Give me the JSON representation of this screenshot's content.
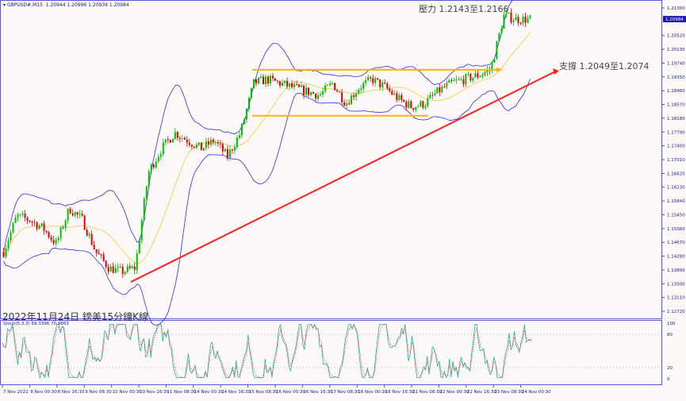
{
  "header": {
    "symbol": "GBPUSD#,M15",
    "ohlc": "1.20944 1.20996 1.20939 1.20984"
  },
  "title": "2022年11月24日 鎊美15分鐘K線",
  "annotations": {
    "resistance": "壓力 1.2143至1.2166",
    "support": "支撐 1.2049至1.2074"
  },
  "colors": {
    "bull": "#00c000",
    "bear": "#e00000",
    "bands": "#2a2aff",
    "level_line": "#ffb400",
    "trend_line": "#ff2020",
    "axis": "#5a5ad8",
    "stoch_main": "#20b0a0",
    "stoch_signal": "#ff3030"
  },
  "chart_data": [
    {
      "type": "candlestick",
      "symbol": "GBPUSD#",
      "timeframe": "M15",
      "ylim": [
        1.1272,
        1.213
      ],
      "y_ticks": [
        "1.21300",
        "1.20520",
        "1.20130",
        "1.19740",
        "1.19350",
        "1.18960",
        "1.18570",
        "1.18180",
        "1.17790",
        "1.17400",
        "1.17010",
        "1.16620",
        "1.16230",
        "1.15840",
        "1.15450",
        "1.15060",
        "1.14670",
        "1.14280",
        "1.13890",
        "1.13500",
        "1.13110",
        "1.12720"
      ],
      "current_price": "1.20984",
      "x_ticks": [
        "7 Nov 2022",
        "8 Nov 00:30",
        "8 Nov 16:30",
        "9 Nov 08:30",
        "10 Nov 00:30",
        "10 Nov 16:30",
        "11 Nov 08:30",
        "14 Nov 00:30",
        "14 Nov 16:30",
        "15 Nov 08:30",
        "16 Nov 00:30",
        "16 Nov 16:30",
        "17 Nov 08:30",
        "18 Nov 00:30",
        "18 Nov 16:30",
        "21 Nov 08:30",
        "22 Nov 00:30",
        "22 Nov 16:30",
        "23 Nov 08:30",
        "24 Nov 00:30"
      ],
      "close_path": [
        1.144,
        1.1541,
        1.153,
        1.1507,
        1.1462,
        1.1563,
        1.153,
        1.144,
        1.1395,
        1.1384,
        1.1395,
        1.1665,
        1.1732,
        1.1777,
        1.1755,
        1.1732,
        1.1755,
        1.171,
        1.1777,
        1.1917,
        1.1928,
        1.1917,
        1.1905,
        1.1894,
        1.1883,
        1.1917,
        1.186,
        1.1905,
        1.1928,
        1.1905,
        1.1872,
        1.185,
        1.186,
        1.1894,
        1.1917,
        1.1928,
        1.1939,
        1.1955,
        1.2108,
        1.2098,
        1.2098
      ],
      "indicators": [
        "Bollinger Bands"
      ],
      "levels": {
        "upper_horizontal": 1.1955,
        "lower_horizontal": 1.1825,
        "trendline_start": 1.1355,
        "trendline_end": 1.195
      }
    },
    {
      "type": "line",
      "label": "Stoch(5,3,3) 69.3396 70.9863",
      "ylim": [
        0,
        100
      ],
      "y_ticks": [
        "100",
        "80",
        "20",
        "0"
      ],
      "levels": [
        80,
        20
      ],
      "last_main": 69.3396,
      "last_signal": 70.9863
    }
  ]
}
